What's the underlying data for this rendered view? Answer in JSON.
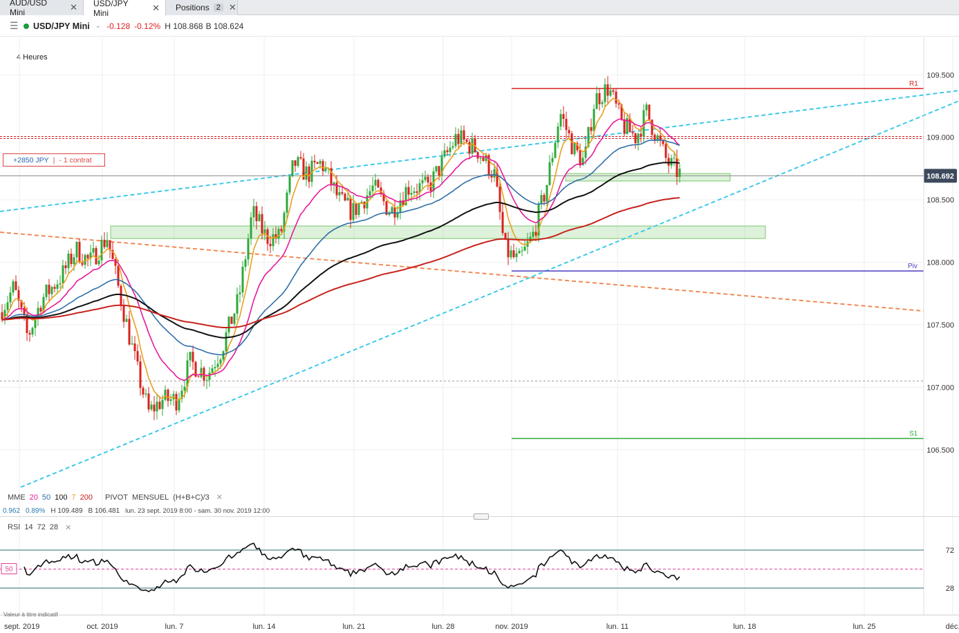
{
  "tabs": [
    {
      "label": "AUD/USD Mini",
      "badge": ""
    },
    {
      "label": "USD/JPY Mini",
      "badge": ""
    },
    {
      "label": "Positions",
      "badge": "2"
    }
  ],
  "header": {
    "instrument": "USD/JPY Mini",
    "change": "-0.128",
    "change_pct": "-0.12%",
    "high": "H 108.868",
    "bid": "B 108.624",
    "timeframe": "4 Heures"
  },
  "position": {
    "pnl": "+2850 JPY",
    "contracts": "- 1 contrat"
  },
  "indicators": {
    "mme_label": "MME",
    "mme_periods": [
      "20",
      "50",
      "100",
      "7",
      "200"
    ],
    "pivot": "PIVOT",
    "pivot_period": "MENSUEL",
    "pivot_formula": "(H+B+C)/3"
  },
  "stats": {
    "value": "0.962",
    "pct": "0.89%",
    "high": "H 109.489",
    "low": "B 106.481",
    "range": "lun. 23 sept. 2019 8:00 - sam. 30 nov. 2019 12:00"
  },
  "rsi": {
    "label": "RSI",
    "params": [
      "14",
      "72",
      "28"
    ],
    "levels": {
      "upper": "72",
      "mid": "50",
      "lower": "28"
    }
  },
  "note": "Valeur à titre indicatif",
  "colors": {
    "bull": "#2fa83a",
    "bear": "#d9211e",
    "ema7": "#e8a020",
    "ema20": "#e6199a",
    "ema50": "#2f6fa8",
    "ema100": "#111111",
    "ema200": "#c8221c",
    "trend": "#3cc9ea",
    "dashed_orange": "#f08a55",
    "r1": "#d9211e",
    "s1": "#2fa83a",
    "piv": "#4a3cc0"
  },
  "chart_data": {
    "type": "candlestick",
    "ylim": [
      106.2,
      109.8
    ],
    "y_ticks": [
      "109.500",
      "109.000",
      "108.500",
      "108.000",
      "107.500",
      "107.000",
      "106.500"
    ],
    "x_ticks": [
      "sept. 2019",
      "oct. 2019",
      "lun. 7",
      "lun. 14",
      "lun. 21",
      "lun. 28",
      "nov. 2019",
      "lun. 11",
      "lun. 18",
      "lun. 25",
      "déc."
    ],
    "current_price": "108.692",
    "levels": {
      "R1": {
        "label": "R1",
        "value": 109.39
      },
      "S1": {
        "label": "S1",
        "value": 106.59
      },
      "Piv": {
        "label": "Piv",
        "value": 107.93
      },
      "position_entry": 108.99,
      "current": 108.692,
      "dotted_grey": 107.05
    },
    "zones": [
      {
        "from": 108.19,
        "to": 108.29
      },
      {
        "from": 108.65,
        "to": 108.71
      }
    ]
  }
}
